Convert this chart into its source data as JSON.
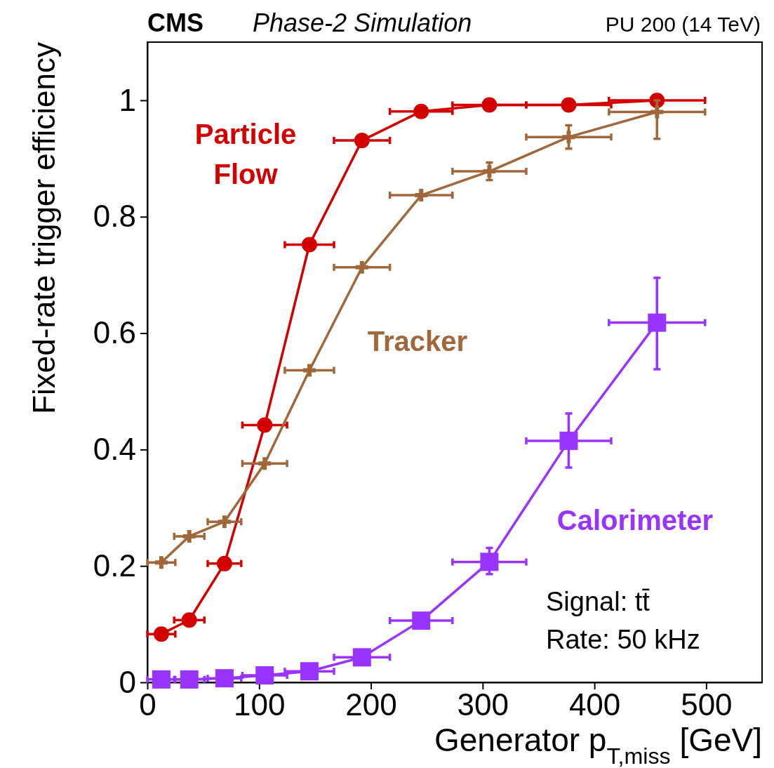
{
  "chart_data": {
    "type": "line",
    "title": "CMS",
    "subtitle": "Phase-2 Simulation",
    "xlabel": "Generator p$_{T,miss}$ [GeV]",
    "ylabel": "Fixed-rate trigger efficiency",
    "annotations": [
      "PU 200 (14 TeV)",
      "Signal: tt̄",
      "Rate: 50 kHz"
    ],
    "xlim": [
      0,
      550
    ],
    "ylim": [
      0,
      1.1
    ],
    "xticks": [
      0,
      100,
      200,
      300,
      400,
      500
    ],
    "yticks": [
      0,
      0.2,
      0.4,
      0.6,
      0.8,
      1
    ],
    "grid": false,
    "legend": "top left",
    "x": [
      12.5,
      37.5,
      69,
      105,
      145,
      192,
      245,
      306,
      377,
      456
    ],
    "series": [
      {
        "name": "Particle Flow",
        "color": "#d40000",
        "marker": "circle",
        "values": [
          0.083,
          0.107,
          0.204,
          0.442,
          0.752,
          0.931,
          0.981,
          0.992,
          0.992,
          1.0
        ],
        "xerrors": [
          12.5,
          13.5,
          15,
          20,
          22,
          25,
          28,
          33,
          38,
          43
        ]
      },
      {
        "name": "Tracker",
        "color": "#a0683a",
        "marker": "cross",
        "values": [
          0.206,
          0.251,
          0.276,
          0.376,
          0.536,
          0.713,
          0.837,
          0.878,
          0.937,
          0.98
        ],
        "xerrors": [
          12.5,
          13.5,
          15,
          20,
          22,
          25,
          28,
          33,
          38,
          43
        ],
        "errors": [
          null,
          null,
          null,
          null,
          null,
          null,
          null,
          0.015,
          0.02,
          [
            0.934,
            1.0
          ]
        ]
      },
      {
        "name": "Calorimeter",
        "color": "#9933ff",
        "marker": "square",
        "values": [
          0.005,
          0.005,
          0.007,
          0.012,
          0.019,
          0.043,
          0.106,
          0.207,
          0.415,
          0.618
        ],
        "xerrors": [
          12.5,
          13.5,
          15,
          20,
          22,
          25,
          28,
          33,
          38,
          43
        ],
        "errors": [
          null,
          null,
          null,
          null,
          null,
          null,
          null,
          [
            0.186,
            0.231
          ],
          [
            0.369,
            0.462
          ],
          [
            0.538,
            0.695
          ]
        ]
      }
    ]
  }
}
